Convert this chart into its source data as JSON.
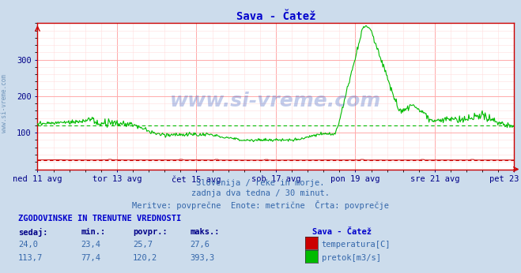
{
  "title": "Sava - Čatež",
  "bg_color": "#ccdcec",
  "plot_bg_color": "#ffffff",
  "grid_color_major": "#ffaaaa",
  "grid_color_minor": "#ffdddd",
  "title_color": "#0000cc",
  "axis_color": "#cc0000",
  "tick_color": "#000088",
  "ylim": [
    0,
    400
  ],
  "yticks": [
    100,
    200,
    300
  ],
  "x_labels": [
    "ned 11 avg",
    "tor 13 avg",
    "čet 15 avg",
    "sob 17 avg",
    "pon 19 avg",
    "sre 21 avg",
    "pet 23 avg"
  ],
  "subtitle1": "Slovenija / reke in morje.",
  "subtitle2": "zadnja dva tedna / 30 minut.",
  "subtitle3": "Meritve: povprečne  Enote: metrične  Črta: povprečje",
  "subtitle_color": "#3366aa",
  "watermark": "www.si-vreme.com",
  "watermark_color": "#3355bb",
  "watermark_alpha": 0.3,
  "side_text": "www.si-vreme.com",
  "side_text_color": "#336699",
  "legend_title": "Sava - Čatež",
  "legend_items": [
    {
      "label": "temperatura[C]",
      "color": "#cc0000"
    },
    {
      "label": "pretok[m3/s]",
      "color": "#00bb00"
    }
  ],
  "table_header": "ZGODOVINSKE IN TRENUTNE VREDNOSTI",
  "table_cols": [
    "sedaj:",
    "min.:",
    "povpr.:",
    "maks.:"
  ],
  "table_rows": [
    {
      "sedaj": "24,0",
      "min": "23,4",
      "povpr": "25,7",
      "maks": "27,6"
    },
    {
      "sedaj": "113,7",
      "min": "77,4",
      "povpr": "120,2",
      "maks": "393,3"
    }
  ],
  "temp_avg_line": 25.7,
  "flow_avg_line": 120.2,
  "n_points": 672
}
